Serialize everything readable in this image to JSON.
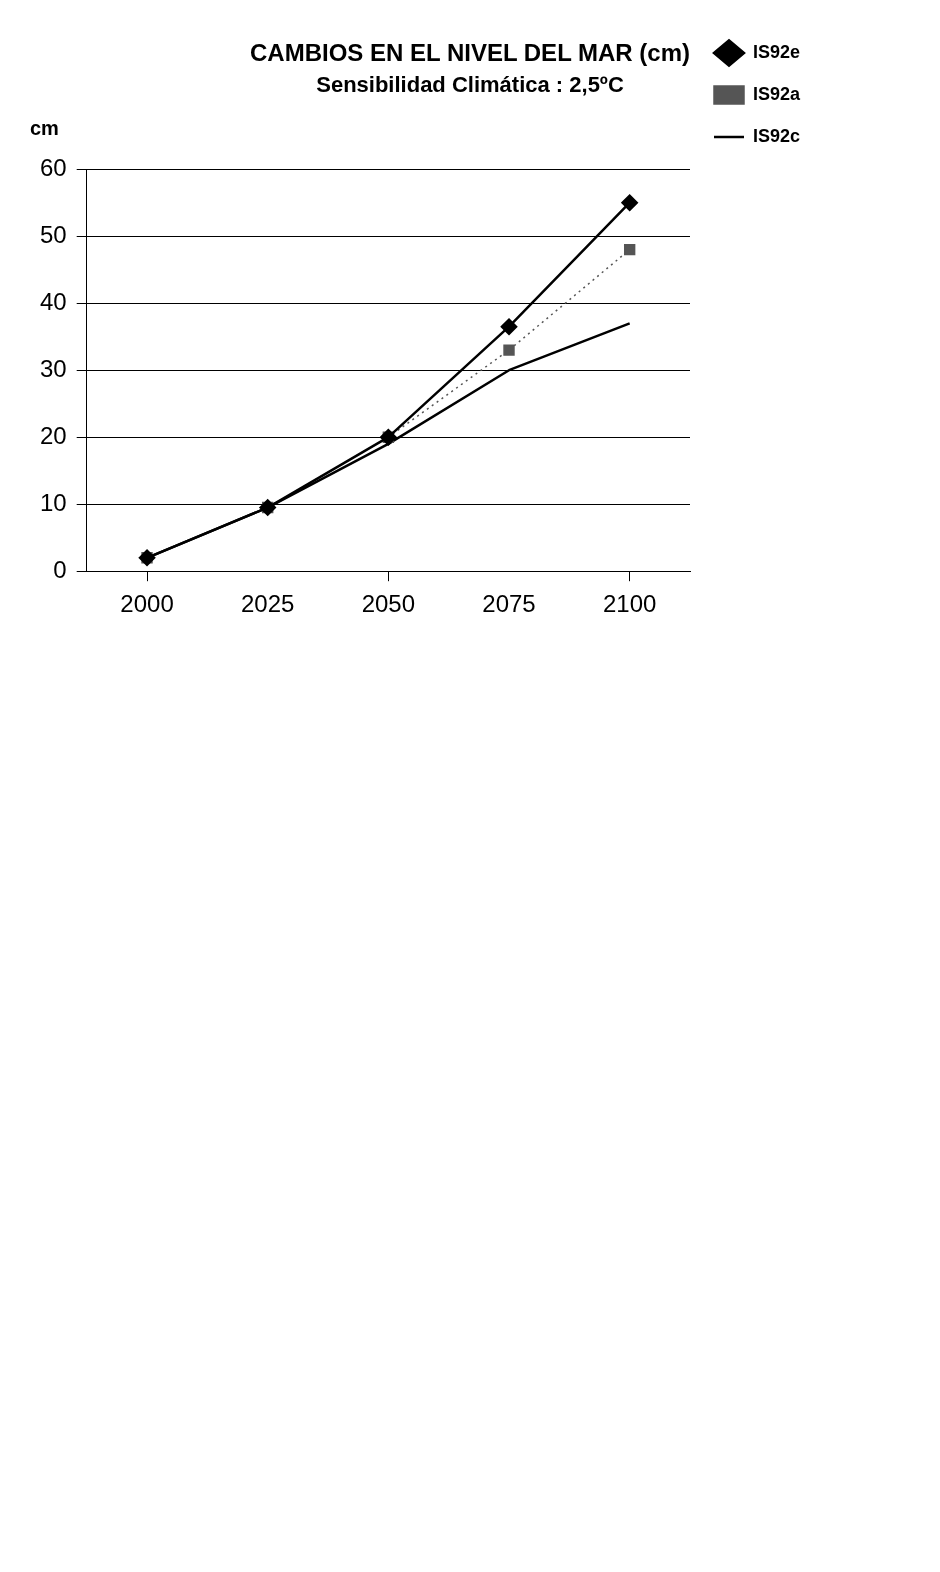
{
  "chart_data": {
    "type": "line",
    "title": "CAMBIOS EN EL NIVEL DEL MAR (cm)",
    "subtitle": "Sensibilidad Climática : 2,5ºC",
    "ylabel": "cm",
    "categories": [
      "2000",
      "2025",
      "2050",
      "2075",
      "2100"
    ],
    "series": [
      {
        "name": "IS92e",
        "color": "#000000",
        "marker": "diamond",
        "line_style": "solid",
        "values": [
          2,
          9.5,
          20,
          36.5,
          55
        ]
      },
      {
        "name": "IS92a",
        "color": "#555555",
        "marker": "square",
        "line_style": "dotted",
        "values": [
          2,
          9.5,
          20,
          33,
          48
        ]
      },
      {
        "name": "IS92c",
        "color": "#000000",
        "marker": "none",
        "line_style": "solid",
        "values": [
          2,
          9.5,
          19,
          30,
          37
        ]
      }
    ],
    "ylim": [
      0,
      60
    ],
    "yticks": [
      0,
      10,
      20,
      30,
      40,
      50,
      60
    ],
    "grid": "y",
    "legend": "right"
  }
}
